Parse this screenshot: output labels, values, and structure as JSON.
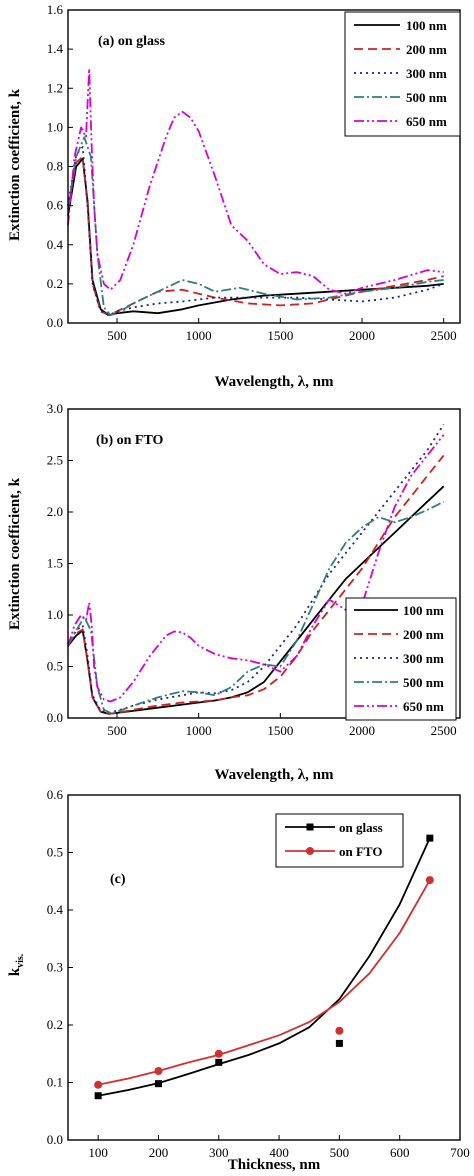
{
  "chart_data": [
    {
      "type": "line",
      "title": "(a) on glass",
      "xlabel": "Wavelength, λ, nm",
      "ylabel": "Extinction coefficient, k",
      "xlim": [
        200,
        2600
      ],
      "ylim": [
        0.0,
        1.6
      ],
      "xticks": [
        "500",
        "1000",
        "1500",
        "2000",
        "2500"
      ],
      "yticks": [
        "0.0",
        "0.2",
        "0.4",
        "0.6",
        "0.8",
        "1.0",
        "1.2",
        "1.4",
        "1.6"
      ],
      "legend_position": "top-right",
      "series": [
        {
          "name": "100 nm",
          "color": "#000000",
          "dash": "",
          "x": [
            200,
            250,
            290,
            320,
            350,
            400,
            450,
            500,
            600,
            750,
            900,
            1000,
            1200,
            1400,
            1600,
            1800,
            2000,
            2200,
            2400,
            2500
          ],
          "y": [
            0.55,
            0.8,
            0.84,
            0.62,
            0.22,
            0.07,
            0.04,
            0.05,
            0.06,
            0.05,
            0.07,
            0.09,
            0.12,
            0.14,
            0.15,
            0.16,
            0.17,
            0.18,
            0.19,
            0.2
          ]
        },
        {
          "name": "200 nm",
          "color": "#cc2222",
          "dash": "9,5",
          "x": [
            200,
            250,
            290,
            320,
            350,
            400,
            450,
            500,
            600,
            750,
            900,
            1000,
            1100,
            1300,
            1500,
            1700,
            2000,
            2200,
            2400,
            2500
          ],
          "y": [
            0.6,
            0.82,
            0.85,
            0.6,
            0.2,
            0.06,
            0.04,
            0.06,
            0.1,
            0.16,
            0.17,
            0.15,
            0.13,
            0.1,
            0.09,
            0.1,
            0.16,
            0.19,
            0.22,
            0.24
          ]
        },
        {
          "name": "300 nm",
          "color": "#1a237e",
          "dash": "2,4",
          "x": [
            200,
            250,
            290,
            320,
            350,
            400,
            450,
            500,
            600,
            750,
            900,
            1000,
            1100,
            1200,
            1400,
            1600,
            1800,
            2000,
            2200,
            2400,
            2500
          ],
          "y": [
            0.6,
            0.86,
            0.9,
            0.6,
            0.2,
            0.06,
            0.04,
            0.06,
            0.08,
            0.1,
            0.11,
            0.12,
            0.13,
            0.13,
            0.13,
            0.13,
            0.12,
            0.11,
            0.13,
            0.17,
            0.2
          ]
        },
        {
          "name": "500 nm",
          "color": "#2f7f7f",
          "dash": "10,3,2,3",
          "x": [
            200,
            250,
            300,
            340,
            380,
            420,
            460,
            500,
            600,
            750,
            900,
            1000,
            1100,
            1250,
            1400,
            1600,
            1800,
            2000,
            2200,
            2400,
            2500
          ],
          "y": [
            0.58,
            0.85,
            0.95,
            0.85,
            0.35,
            0.08,
            0.04,
            0.05,
            0.1,
            0.16,
            0.22,
            0.2,
            0.16,
            0.18,
            0.15,
            0.12,
            0.13,
            0.16,
            0.18,
            0.21,
            0.22
          ]
        },
        {
          "name": "650 nm",
          "color": "#d600d6",
          "dash": "10,3,2,3,2,3",
          "x": [
            200,
            240,
            280,
            310,
            330,
            345,
            360,
            380,
            420,
            460,
            520,
            600,
            700,
            800,
            850,
            900,
            950,
            1000,
            1100,
            1200,
            1300,
            1400,
            1500,
            1600,
            1700,
            1800,
            1900,
            2000,
            2200,
            2400,
            2500
          ],
          "y": [
            0.5,
            0.85,
            1.0,
            0.95,
            1.3,
            0.9,
            0.6,
            0.35,
            0.2,
            0.17,
            0.22,
            0.4,
            0.7,
            0.95,
            1.05,
            1.08,
            1.05,
            0.98,
            0.75,
            0.5,
            0.42,
            0.3,
            0.25,
            0.26,
            0.24,
            0.17,
            0.15,
            0.18,
            0.22,
            0.27,
            0.26
          ]
        }
      ]
    },
    {
      "type": "line",
      "title": "(b) on FTO",
      "xlabel": "Wavelength, λ, nm",
      "ylabel": "Extinction coefficient, k",
      "xlim": [
        200,
        2600
      ],
      "ylim": [
        0.0,
        3.0
      ],
      "xticks": [
        "500",
        "1000",
        "1500",
        "2000",
        "2500"
      ],
      "yticks": [
        "0.0",
        "0.5",
        "1.0",
        "1.5",
        "2.0",
        "2.5",
        "3.0"
      ],
      "legend_position": "lower-right",
      "series": [
        {
          "name": "100 nm",
          "color": "#000000",
          "dash": "",
          "x": [
            200,
            250,
            290,
            320,
            350,
            400,
            450,
            500,
            600,
            750,
            900,
            1000,
            1100,
            1200,
            1300,
            1400,
            1500,
            1600,
            1700,
            1800,
            1900,
            2000,
            2100,
            2200,
            2300,
            2400,
            2500
          ],
          "y": [
            0.7,
            0.8,
            0.85,
            0.55,
            0.2,
            0.06,
            0.04,
            0.05,
            0.07,
            0.1,
            0.13,
            0.15,
            0.17,
            0.2,
            0.25,
            0.35,
            0.55,
            0.75,
            0.95,
            1.15,
            1.35,
            1.5,
            1.65,
            1.8,
            1.95,
            2.1,
            2.25
          ]
        },
        {
          "name": "200 nm",
          "color": "#cc2222",
          "dash": "9,5",
          "x": [
            200,
            250,
            290,
            320,
            350,
            400,
            450,
            500,
            600,
            750,
            900,
            1000,
            1100,
            1200,
            1300,
            1400,
            1500,
            1600,
            1700,
            1800,
            1900,
            2000,
            2100,
            2200,
            2300,
            2400,
            2500
          ],
          "y": [
            0.72,
            0.82,
            0.86,
            0.55,
            0.2,
            0.06,
            0.04,
            0.05,
            0.08,
            0.12,
            0.15,
            0.16,
            0.17,
            0.2,
            0.22,
            0.28,
            0.4,
            0.6,
            0.85,
            1.05,
            1.25,
            1.45,
            1.7,
            1.95,
            2.15,
            2.35,
            2.55
          ]
        },
        {
          "name": "300 nm",
          "color": "#1a237e",
          "dash": "2,4",
          "x": [
            200,
            250,
            290,
            320,
            350,
            400,
            450,
            500,
            600,
            750,
            900,
            1000,
            1100,
            1200,
            1300,
            1400,
            1500,
            1600,
            1700,
            1800,
            1900,
            2000,
            2100,
            2200,
            2300,
            2400,
            2500
          ],
          "y": [
            0.72,
            0.85,
            0.9,
            0.6,
            0.22,
            0.07,
            0.05,
            0.07,
            0.12,
            0.18,
            0.22,
            0.25,
            0.24,
            0.27,
            0.35,
            0.5,
            0.7,
            0.9,
            1.15,
            1.4,
            1.6,
            1.8,
            2.0,
            2.2,
            2.4,
            2.6,
            2.85
          ]
        },
        {
          "name": "500 nm",
          "color": "#2f7f7f",
          "dash": "10,3,2,3",
          "x": [
            200,
            250,
            300,
            340,
            380,
            420,
            460,
            500,
            600,
            750,
            900,
            1000,
            1100,
            1200,
            1300,
            1400,
            1500,
            1600,
            1700,
            1800,
            1900,
            2000,
            2100,
            2200,
            2300,
            2400,
            2500
          ],
          "y": [
            0.7,
            0.85,
            0.98,
            0.85,
            0.3,
            0.08,
            0.05,
            0.06,
            0.12,
            0.2,
            0.26,
            0.25,
            0.22,
            0.3,
            0.45,
            0.52,
            0.5,
            0.75,
            1.1,
            1.45,
            1.7,
            1.85,
            1.95,
            1.9,
            1.95,
            2.02,
            2.1
          ]
        },
        {
          "name": "650 nm",
          "color": "#d600d6",
          "dash": "10,3,2,3,2,3",
          "x": [
            200,
            240,
            280,
            310,
            330,
            345,
            360,
            380,
            420,
            460,
            520,
            600,
            700,
            800,
            850,
            900,
            950,
            1000,
            1100,
            1200,
            1300,
            1400,
            1500,
            1600,
            1700,
            1800,
            1900,
            2000,
            2100,
            2200,
            2300,
            2400,
            2500
          ],
          "y": [
            0.7,
            0.9,
            1.0,
            0.95,
            1.12,
            0.9,
            0.5,
            0.3,
            0.18,
            0.16,
            0.2,
            0.35,
            0.6,
            0.8,
            0.84,
            0.83,
            0.78,
            0.7,
            0.62,
            0.58,
            0.56,
            0.52,
            0.45,
            0.6,
            0.9,
            1.15,
            1.05,
            1.1,
            1.6,
            2.05,
            2.35,
            2.55,
            2.75
          ]
        }
      ]
    },
    {
      "type": "line",
      "title": "(c)",
      "xlabel": "Thickness, nm",
      "ylabel": "k",
      "ylabel_sub": "vis.",
      "xlim": [
        50,
        700
      ],
      "ylim": [
        0.0,
        0.6
      ],
      "xticks": [
        "100",
        "200",
        "300",
        "400",
        "500",
        "600",
        "700"
      ],
      "yticks": [
        "0.0",
        "0.1",
        "0.2",
        "0.3",
        "0.4",
        "0.5",
        "0.6"
      ],
      "legend_position": "top-right",
      "series": [
        {
          "name": "on glass",
          "color": "#000000",
          "marker": "square",
          "points_x": [
            100,
            200,
            300,
            500,
            650
          ],
          "points_y": [
            0.077,
            0.098,
            0.135,
            0.168,
            0.525
          ],
          "curve_x": [
            100,
            150,
            200,
            250,
            300,
            350,
            400,
            450,
            500,
            550,
            600,
            650
          ],
          "curve_y": [
            0.077,
            0.087,
            0.099,
            0.115,
            0.132,
            0.148,
            0.168,
            0.196,
            0.245,
            0.32,
            0.41,
            0.525
          ]
        },
        {
          "name": "on FTO",
          "color": "#d32f2f",
          "marker": "circle",
          "points_x": [
            100,
            200,
            300,
            500,
            650
          ],
          "points_y": [
            0.096,
            0.12,
            0.15,
            0.19,
            0.452
          ],
          "curve_x": [
            100,
            150,
            200,
            250,
            300,
            350,
            400,
            450,
            500,
            550,
            600,
            650
          ],
          "curve_y": [
            0.096,
            0.107,
            0.12,
            0.135,
            0.148,
            0.165,
            0.182,
            0.205,
            0.24,
            0.29,
            0.36,
            0.452
          ]
        }
      ]
    }
  ]
}
